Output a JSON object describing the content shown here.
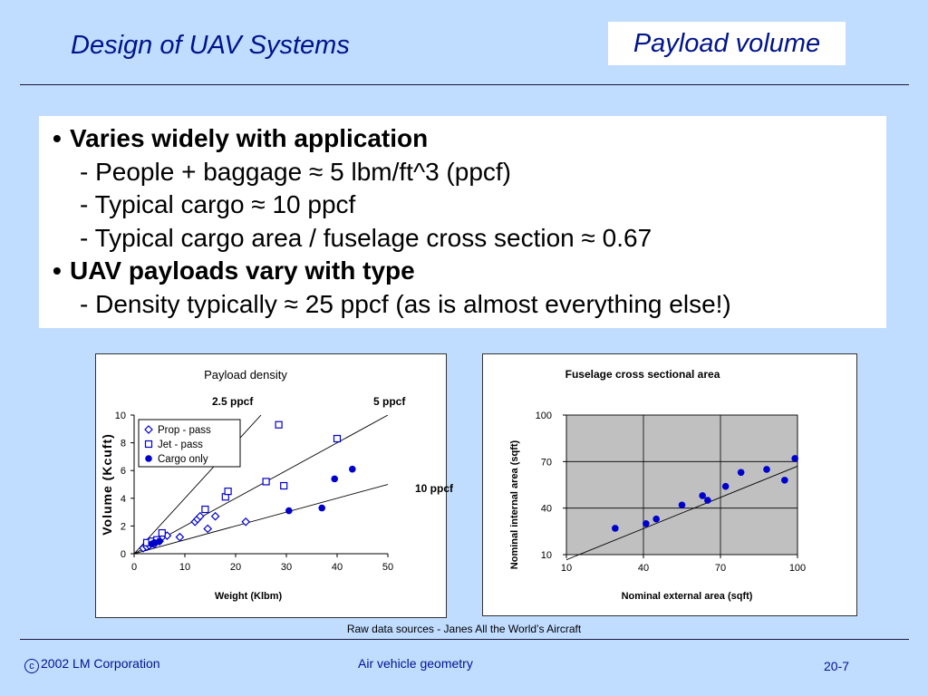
{
  "slide": {
    "title": "Design of UAV Systems",
    "topic": "Payload volume"
  },
  "bullets": [
    {
      "level": 1,
      "text": "Varies widely with application"
    },
    {
      "level": 2,
      "text": "- People + baggage ≈ 5 lbm/ft^3 (ppcf)"
    },
    {
      "level": 2,
      "text": "- Typical cargo ≈ 10 ppcf"
    },
    {
      "level": 2,
      "text": "- Typical cargo area / fuselage cross section ≈ 0.67"
    },
    {
      "level": 1,
      "text": "UAV payloads vary with type"
    },
    {
      "level": 2,
      "text": "- Density typically ≈ 25 ppcf (as is almost everything else!)"
    }
  ],
  "bullet_symbol": "•",
  "chart_data": [
    {
      "type": "scatter",
      "title": "Payload density",
      "xlabel": "Weight (Klbm)",
      "ylabel": "Volume (Kcuft)",
      "xlim": [
        0,
        50
      ],
      "ylim": [
        0,
        10
      ],
      "xticks": [
        "0",
        "10",
        "20",
        "30",
        "40",
        "50"
      ],
      "yticks": [
        "0",
        "2",
        "4",
        "6",
        "8",
        "10"
      ],
      "grid": false,
      "legend_position": "top-left",
      "series": [
        {
          "name": "Prop - pass",
          "marker": "diamond-open",
          "points": [
            [
              1.8,
              0.4
            ],
            [
              2.5,
              0.5
            ],
            [
              3,
              0.6
            ],
            [
              3.5,
              0.8
            ],
            [
              4,
              0.7
            ],
            [
              4.5,
              0.9
            ],
            [
              5,
              0.9
            ],
            [
              5.5,
              1.2
            ],
            [
              6.5,
              1.3
            ],
            [
              9,
              1.2
            ],
            [
              12,
              2.3
            ],
            [
              12.5,
              2.5
            ],
            [
              13,
              2.7
            ],
            [
              14.5,
              1.8
            ],
            [
              16,
              2.7
            ],
            [
              22,
              2.3
            ]
          ]
        },
        {
          "name": "Jet - pass",
          "marker": "square-open",
          "points": [
            [
              2.5,
              0.8
            ],
            [
              3.5,
              0.9
            ],
            [
              4.5,
              1.0
            ],
            [
              5.5,
              1.5
            ],
            [
              14,
              3.2
            ],
            [
              18,
              4.1
            ],
            [
              18.5,
              4.5
            ],
            [
              26,
              5.2
            ],
            [
              28.5,
              9.3
            ],
            [
              29.5,
              4.9
            ],
            [
              40,
              8.3
            ]
          ]
        },
        {
          "name": "Cargo only",
          "marker": "circle-filled",
          "points": [
            [
              3.5,
              0.7
            ],
            [
              4,
              0.8
            ],
            [
              5,
              0.9
            ],
            [
              30.5,
              3.1
            ],
            [
              37,
              3.3
            ],
            [
              39.5,
              5.4
            ],
            [
              43,
              6.1
            ]
          ]
        }
      ],
      "reference_lines": [
        {
          "label": "2.5 ppcf",
          "slope": 0.4
        },
        {
          "label": "5 ppcf",
          "slope": 0.2
        },
        {
          "label": "10 ppcf",
          "slope": 0.1
        }
      ]
    },
    {
      "type": "scatter",
      "title": "Fuselage cross sectional area",
      "xlabel": "Nominal external area (sqft)",
      "ylabel": "Nominal internal area (sqft)",
      "xlim": [
        10,
        100
      ],
      "ylim": [
        10,
        100
      ],
      "xticks": [
        "10",
        "40",
        "70",
        "100"
      ],
      "yticks": [
        "10",
        "40",
        "70",
        "100"
      ],
      "grid": true,
      "series": [
        {
          "name": "",
          "marker": "circle-filled",
          "points": [
            [
              29,
              27
            ],
            [
              41,
              30
            ],
            [
              45,
              33
            ],
            [
              55,
              42
            ],
            [
              63,
              48
            ],
            [
              65,
              45
            ],
            [
              72,
              54
            ],
            [
              78,
              63
            ],
            [
              88,
              65
            ],
            [
              95,
              58
            ],
            [
              99,
              72
            ]
          ]
        }
      ],
      "reference_lines": [
        {
          "label": "",
          "slope": 0.67
        }
      ]
    }
  ],
  "source_note": "Raw data sources - Janes All the World’s Aircraft",
  "footer": {
    "copyright": "2002 LM Corporation",
    "center": "Air vehicle geometry",
    "page": "20-7"
  },
  "colors": {
    "background": "#c0dcff",
    "title": "#00148c",
    "plot_area": "#c0c0c0",
    "marker": "#0000cc"
  }
}
